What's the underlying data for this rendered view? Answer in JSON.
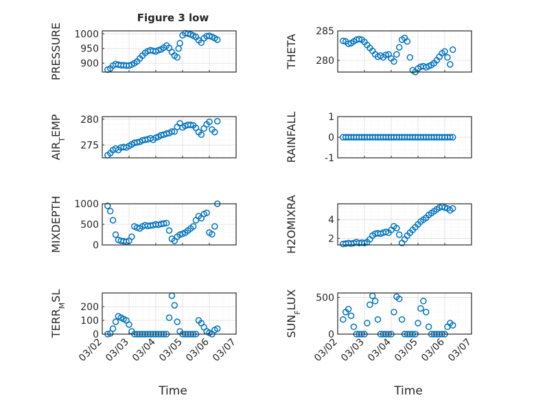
{
  "figure": {
    "title": "Figure 3 low",
    "left_xlabel": "Time",
    "right_xlabel": "Time",
    "marker_color": "#0072BD"
  },
  "chart_data": [
    {
      "type": "scatter",
      "ylabel": "PRESSURE",
      "xlim": [
        "03/02",
        "03/07"
      ],
      "ylim": [
        870,
        1010
      ],
      "yticks": [
        900,
        950,
        1000
      ],
      "x_days": [
        0.2,
        0.3,
        0.4,
        0.5,
        0.6,
        0.7,
        0.8,
        0.9,
        1.0,
        1.1,
        1.2,
        1.3,
        1.4,
        1.5,
        1.6,
        1.7,
        1.8,
        1.9,
        2.0,
        2.1,
        2.2,
        2.3,
        2.4,
        2.5,
        2.6,
        2.7,
        2.8,
        2.85,
        2.9,
        3.0,
        3.1,
        3.2,
        3.3,
        3.4,
        3.5,
        3.6,
        3.7,
        3.8,
        3.9,
        4.0,
        4.1,
        4.2,
        4.3
      ],
      "y": [
        878,
        882,
        892,
        897,
        895,
        893,
        893,
        892,
        892,
        895,
        900,
        906,
        916,
        926,
        935,
        941,
        944,
        942,
        940,
        944,
        947,
        953,
        960,
        952,
        938,
        926,
        920,
        950,
        968,
        995,
        1002,
        1001,
        998,
        994,
        989,
        978,
        970,
        985,
        992,
        993,
        990,
        985,
        980
      ]
    },
    {
      "type": "scatter",
      "ylabel": "THETA",
      "xlim": [
        "03/02",
        "03/07"
      ],
      "ylim": [
        278,
        285
      ],
      "yticks": [
        280,
        285
      ],
      "x_days": [
        0.2,
        0.3,
        0.4,
        0.5,
        0.6,
        0.7,
        0.8,
        0.9,
        1.0,
        1.1,
        1.2,
        1.3,
        1.4,
        1.5,
        1.6,
        1.7,
        1.8,
        1.9,
        2.0,
        2.1,
        2.2,
        2.3,
        2.4,
        2.5,
        2.6,
        2.7,
        2.8,
        2.9,
        3.0,
        3.1,
        3.2,
        3.3,
        3.4,
        3.5,
        3.6,
        3.7,
        3.8,
        3.9,
        4.0,
        4.1,
        4.2,
        4.3
      ],
      "y": [
        283.3,
        283.2,
        282.8,
        282.9,
        283.2,
        283.5,
        283.6,
        283.5,
        283.1,
        282.6,
        282.1,
        281.6,
        281.0,
        280.6,
        280.8,
        280.5,
        280.9,
        281.0,
        280.3,
        279.8,
        281.0,
        282.2,
        283.5,
        283.8,
        283.2,
        280.5,
        278.3,
        278.0,
        278.6,
        278.9,
        279.0,
        278.8,
        279.0,
        279.2,
        279.5,
        280.0,
        280.6,
        281.2,
        281.5,
        280.5,
        279.3,
        281.8
      ]
    },
    {
      "type": "scatter",
      "ylabel": "AIR_TEMP",
      "xlim": [
        "03/02",
        "03/07"
      ],
      "ylim": [
        272.5,
        280.5
      ],
      "yticks": [
        275,
        280
      ],
      "x_days": [
        0.2,
        0.3,
        0.4,
        0.5,
        0.6,
        0.7,
        0.8,
        0.9,
        1.0,
        1.1,
        1.2,
        1.3,
        1.4,
        1.5,
        1.6,
        1.7,
        1.8,
        1.9,
        2.0,
        2.1,
        2.2,
        2.3,
        2.4,
        2.5,
        2.6,
        2.7,
        2.8,
        2.9,
        3.0,
        3.1,
        3.2,
        3.3,
        3.4,
        3.5,
        3.6,
        3.7,
        3.8,
        3.9,
        4.0,
        4.1,
        4.2,
        4.3
      ],
      "y": [
        273.0,
        273.4,
        274.0,
        274.3,
        274.0,
        274.5,
        274.6,
        274.5,
        274.8,
        275.1,
        275.4,
        275.5,
        275.6,
        275.9,
        276.0,
        276.1,
        276.3,
        276.0,
        276.4,
        276.6,
        276.9,
        277.0,
        277.2,
        277.3,
        277.6,
        277.6,
        278.5,
        279.2,
        278.4,
        278.7,
        278.9,
        278.9,
        278.8,
        278.3,
        277.5,
        277.0,
        278.2,
        279.0,
        279.5,
        278.0,
        277.5,
        279.6
      ]
    },
    {
      "type": "scatter",
      "ylabel": "RAINFALL",
      "xlim": [
        "03/02",
        "03/07"
      ],
      "ylim": [
        -1,
        1
      ],
      "yticks": [
        -1,
        0,
        1
      ],
      "x_days": [
        0.2,
        0.3,
        0.4,
        0.5,
        0.6,
        0.7,
        0.8,
        0.9,
        1.0,
        1.1,
        1.2,
        1.3,
        1.4,
        1.5,
        1.6,
        1.7,
        1.8,
        1.9,
        2.0,
        2.1,
        2.2,
        2.3,
        2.4,
        2.5,
        2.6,
        2.7,
        2.8,
        2.9,
        3.0,
        3.1,
        3.2,
        3.3,
        3.4,
        3.5,
        3.6,
        3.7,
        3.8,
        3.9,
        4.0,
        4.1,
        4.2,
        4.3
      ],
      "y": [
        0,
        0,
        0,
        0,
        0,
        0,
        0,
        0,
        0,
        0,
        0,
        0,
        0,
        0,
        0,
        0,
        0,
        0,
        0,
        0,
        0,
        0,
        0,
        0,
        0,
        0,
        0,
        0,
        0,
        0,
        0,
        0,
        0,
        0,
        0,
        0,
        0,
        0,
        0,
        0,
        0,
        0
      ]
    },
    {
      "type": "scatter",
      "ylabel": "MIXDEPTH",
      "xlim": [
        "03/02",
        "03/07"
      ],
      "ylim": [
        0,
        1000
      ],
      "yticks": [
        0,
        500,
        1000
      ],
      "x_days": [
        0.2,
        0.3,
        0.4,
        0.5,
        0.6,
        0.7,
        0.8,
        0.9,
        1.0,
        1.1,
        1.2,
        1.3,
        1.4,
        1.5,
        1.6,
        1.7,
        1.8,
        1.9,
        2.0,
        2.1,
        2.2,
        2.3,
        2.4,
        2.5,
        2.6,
        2.7,
        2.8,
        2.9,
        3.0,
        3.1,
        3.2,
        3.3,
        3.4,
        3.5,
        3.6,
        3.7,
        3.8,
        3.9,
        4.0,
        4.1,
        4.2,
        4.3
      ],
      "y": [
        950,
        820,
        600,
        250,
        120,
        100,
        90,
        80,
        100,
        200,
        450,
        420,
        400,
        450,
        480,
        460,
        470,
        480,
        500,
        490,
        510,
        520,
        530,
        350,
        150,
        100,
        200,
        250,
        270,
        300,
        350,
        400,
        450,
        600,
        700,
        650,
        750,
        780,
        300,
        260,
        450,
        1000
      ]
    },
    {
      "type": "scatter",
      "ylabel": "H2OMIXRA",
      "xlim": [
        "03/02",
        "03/07"
      ],
      "ylim": [
        1.3,
        5.7
      ],
      "yticks": [
        2,
        4
      ],
      "x_days": [
        0.2,
        0.3,
        0.4,
        0.5,
        0.6,
        0.7,
        0.8,
        0.9,
        1.0,
        1.1,
        1.2,
        1.3,
        1.4,
        1.5,
        1.6,
        1.7,
        1.8,
        1.9,
        2.0,
        2.1,
        2.2,
        2.3,
        2.4,
        2.5,
        2.6,
        2.7,
        2.8,
        2.9,
        3.0,
        3.1,
        3.2,
        3.3,
        3.4,
        3.5,
        3.6,
        3.7,
        3.8,
        3.9,
        4.0,
        4.1,
        4.2,
        4.3
      ],
      "y": [
        1.4,
        1.45,
        1.5,
        1.45,
        1.5,
        1.6,
        1.5,
        1.55,
        1.5,
        1.6,
        1.9,
        2.3,
        2.5,
        2.55,
        2.5,
        2.6,
        2.7,
        2.6,
        2.9,
        3.3,
        3.1,
        2.4,
        1.5,
        1.9,
        2.3,
        2.6,
        2.9,
        3.2,
        3.5,
        3.8,
        4.0,
        4.2,
        4.5,
        4.7,
        4.9,
        5.1,
        5.3,
        5.4,
        5.3,
        5.2,
        5.0,
        5.2
      ]
    },
    {
      "type": "scatter",
      "ylabel": "TERR_MSL",
      "xlim": [
        "03/02",
        "03/07"
      ],
      "ylim": [
        0,
        300
      ],
      "yticks": [
        0,
        100,
        200
      ],
      "x_days": [
        0.2,
        0.3,
        0.4,
        0.5,
        0.6,
        0.7,
        0.8,
        0.9,
        1.0,
        1.1,
        1.2,
        1.3,
        1.4,
        1.5,
        1.6,
        1.7,
        1.8,
        1.9,
        2.0,
        2.1,
        2.2,
        2.3,
        2.4,
        2.5,
        2.6,
        2.7,
        2.8,
        2.9,
        3.0,
        3.1,
        3.2,
        3.3,
        3.4,
        3.5,
        3.6,
        3.7,
        3.8,
        3.9,
        4.0,
        4.1,
        4.2,
        4.3
      ],
      "y": [
        0,
        5,
        40,
        90,
        130,
        120,
        110,
        100,
        70,
        20,
        0,
        0,
        0,
        0,
        0,
        0,
        0,
        0,
        0,
        0,
        0,
        0,
        0,
        120,
        280,
        210,
        90,
        20,
        0,
        0,
        0,
        0,
        0,
        0,
        100,
        80,
        50,
        20,
        10,
        0,
        30,
        40
      ]
    },
    {
      "type": "scatter",
      "ylabel": "SUN_FLUX",
      "xlim": [
        "03/02",
        "03/07"
      ],
      "ylim": [
        0,
        560
      ],
      "yticks": [
        0,
        500
      ],
      "x_days": [
        0.2,
        0.3,
        0.4,
        0.5,
        0.6,
        0.7,
        0.8,
        0.9,
        1.0,
        1.1,
        1.2,
        1.3,
        1.4,
        1.5,
        1.6,
        1.7,
        1.8,
        1.9,
        2.0,
        2.1,
        2.2,
        2.3,
        2.4,
        2.5,
        2.6,
        2.7,
        2.8,
        2.9,
        3.0,
        3.1,
        3.2,
        3.3,
        3.4,
        3.5,
        3.6,
        3.7,
        3.8,
        3.9,
        4.0,
        4.1,
        4.2,
        4.3
      ],
      "y": [
        200,
        300,
        340,
        250,
        100,
        0,
        0,
        0,
        0,
        150,
        400,
        520,
        450,
        200,
        0,
        0,
        0,
        0,
        0,
        300,
        510,
        480,
        200,
        0,
        0,
        0,
        0,
        0,
        150,
        350,
        450,
        300,
        100,
        0,
        0,
        0,
        0,
        0,
        0,
        100,
        150,
        120
      ]
    }
  ]
}
